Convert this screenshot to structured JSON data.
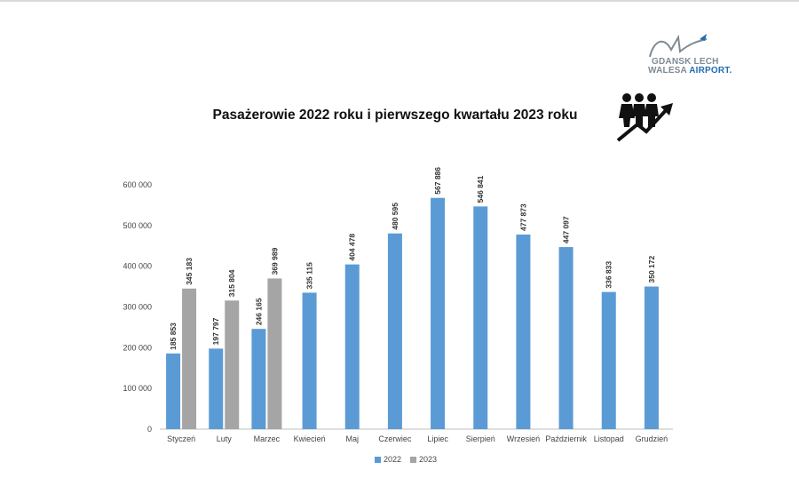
{
  "logo": {
    "line1": "GDANSK LECH",
    "line2_a": "WALESA ",
    "line2_b": "AIRPORT."
  },
  "chart_data": {
    "type": "bar",
    "title": "Pasażerowie 2022 roku i pierwszego kwartału 2023 roku",
    "xlabel": "",
    "ylabel": "",
    "ylim": [
      0,
      600000
    ],
    "yticks": [
      0,
      100000,
      200000,
      300000,
      400000,
      500000,
      600000
    ],
    "ytick_labels": [
      "0",
      "100 000",
      "200 000",
      "300 000",
      "400 000",
      "500 000",
      "600 000"
    ],
    "grid": false,
    "legend_position": "bottom",
    "categories": [
      "Styczeń",
      "Luty",
      "Marzec",
      "Kwiecień",
      "Maj",
      "Czerwiec",
      "Lipiec",
      "Sierpień",
      "Wrzesień",
      "Październik",
      "Listopad",
      "Grudzień"
    ],
    "series": [
      {
        "name": "2022",
        "color": "#5b9bd5",
        "values": [
          185853,
          197797,
          246165,
          335115,
          404478,
          480595,
          567886,
          546841,
          477873,
          447097,
          336833,
          350172
        ],
        "labels": [
          "185 853",
          "197 797",
          "246 165",
          "335 115",
          "404 478",
          "480 595",
          "567 886",
          "546 841",
          "477 873",
          "447 097",
          "336 833",
          "350 172"
        ]
      },
      {
        "name": "2023",
        "color": "#a5a5a5",
        "values": [
          345183,
          315804,
          369989,
          null,
          null,
          null,
          null,
          null,
          null,
          null,
          null,
          null
        ],
        "labels": [
          "345 183",
          "315 804",
          "369 989",
          null,
          null,
          null,
          null,
          null,
          null,
          null,
          null,
          null
        ]
      }
    ]
  }
}
